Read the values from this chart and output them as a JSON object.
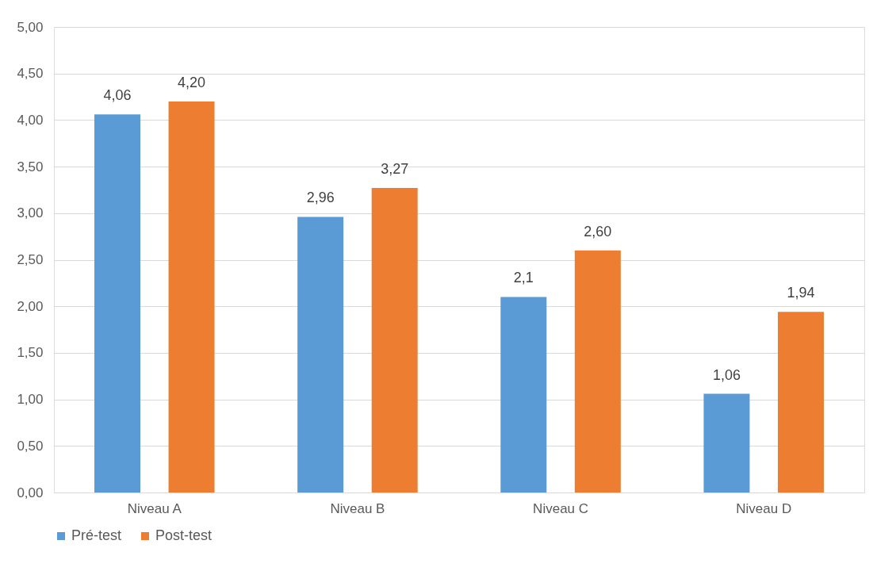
{
  "chart_data": {
    "type": "bar",
    "categories": [
      "Niveau A",
      "Niveau B",
      "Niveau C",
      "Niveau D"
    ],
    "series": [
      {
        "name": "Pré-test",
        "color": "#5b9bd5",
        "values": [
          4.06,
          2.96,
          2.1,
          1.06
        ],
        "value_labels": [
          "4,06",
          "2,96",
          "2,1",
          "1,06"
        ]
      },
      {
        "name": "Post-test",
        "color": "#ed7d31",
        "values": [
          4.2,
          3.27,
          2.6,
          1.94
        ],
        "value_labels": [
          "4,20",
          "3,27",
          "2,60",
          "1,94"
        ]
      }
    ],
    "ylim": [
      0,
      5
    ],
    "yticks": [
      {
        "value": 0,
        "label": "0,00"
      },
      {
        "value": 0.5,
        "label": "0,50"
      },
      {
        "value": 1,
        "label": "1,00"
      },
      {
        "value": 1.5,
        "label": "1,50"
      },
      {
        "value": 2,
        "label": "2,00"
      },
      {
        "value": 2.5,
        "label": "2,50"
      },
      {
        "value": 3,
        "label": "3,00"
      },
      {
        "value": 3.5,
        "label": "3,50"
      },
      {
        "value": 4,
        "label": "4,00"
      },
      {
        "value": 4.5,
        "label": "4,50"
      },
      {
        "value": 5,
        "label": "5,00"
      }
    ],
    "grid": "y",
    "legend": "bottom"
  }
}
